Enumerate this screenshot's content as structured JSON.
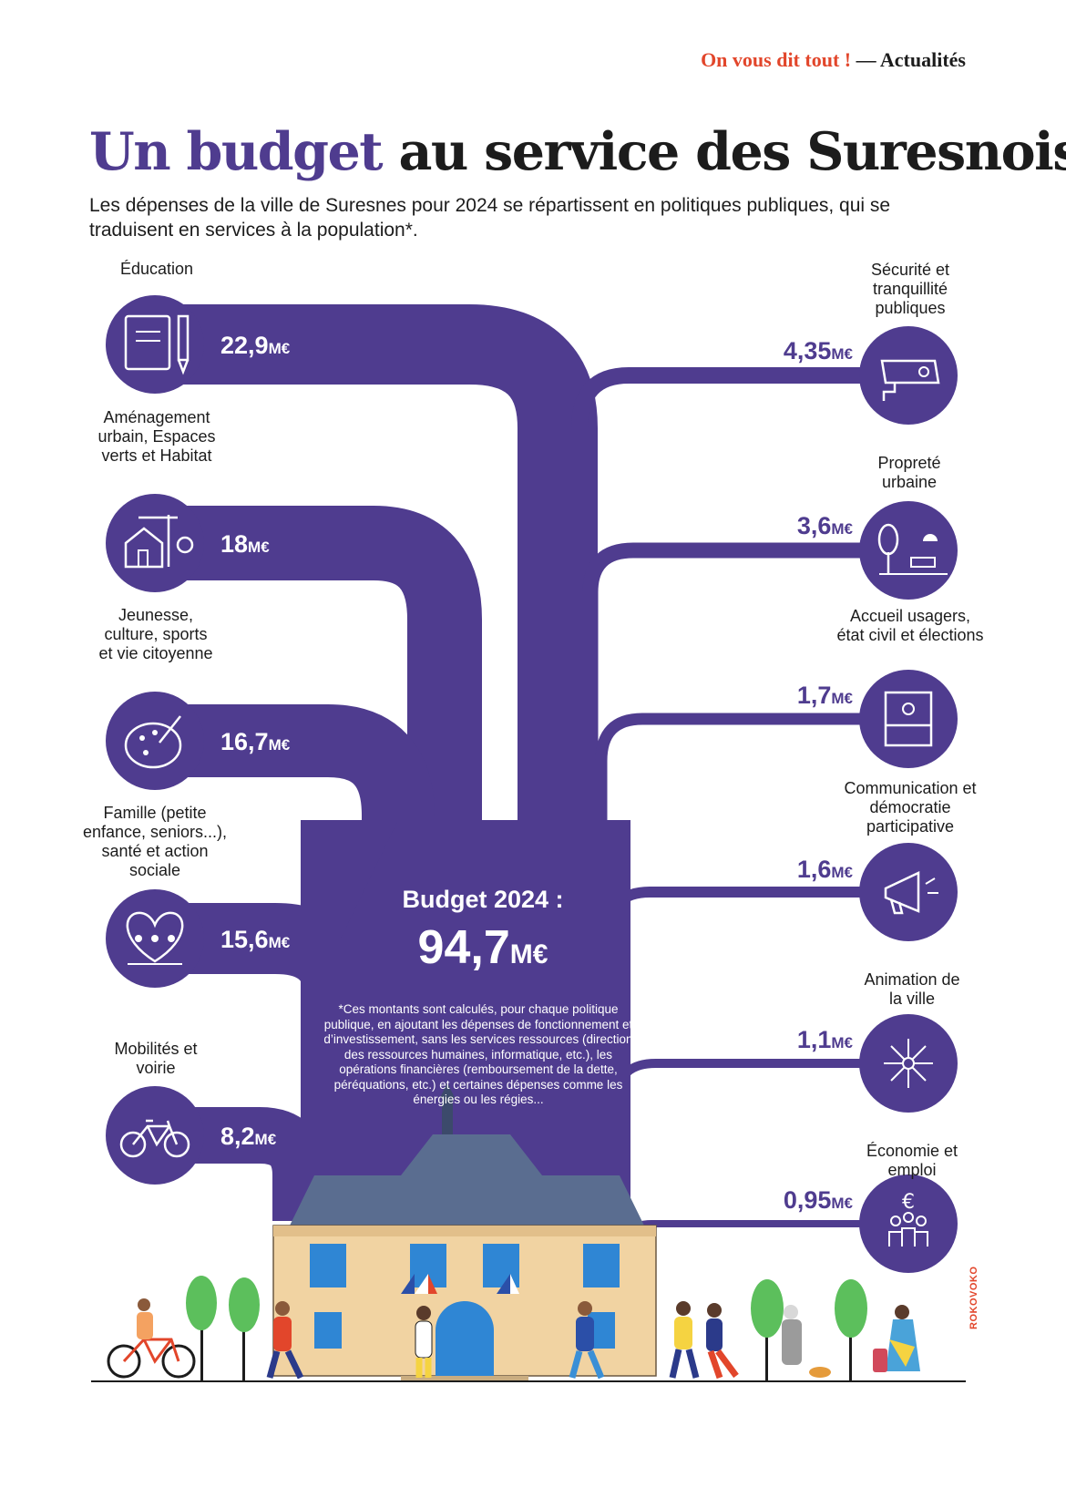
{
  "header": {
    "kicker_accent": "On vous dit tout !",
    "kicker_rest": " — Actualités"
  },
  "title": {
    "accent": "Un budget",
    "rest": " au service des Suresnois"
  },
  "intro": "Les dépenses de la ville de Suresnes pour 2024 se répartissent en politiques publiques, qui se traduisent en services à la population*.",
  "budget": {
    "title": "Budget 2024 :",
    "value": "94,7",
    "unit": "M€"
  },
  "footnote": "*Ces montants sont calculés, pour chaque politique publique, en ajoutant les dépenses de fonctionnement et d’investissement, sans les services ressources (direction des ressources humaines, informatique, etc.), les opérations financières (remboursement de la dette, péréquations, etc.) et certaines dépenses comme les énergies ou les régies...",
  "left_items": [
    {
      "label": "Éducation",
      "amount": "22,9",
      "unit": "M€",
      "icon": "book-pencil-icon"
    },
    {
      "label": "Aménagement urbain, Espaces verts et Habitat",
      "amount": "18",
      "unit": "M€",
      "icon": "house-crane-icon"
    },
    {
      "label": "Jeunesse, culture, sports et vie citoyenne",
      "amount": "16,7",
      "unit": "M€",
      "icon": "palette-icon"
    },
    {
      "label": "Famille (petite enfance, seniors...), santé et action sociale",
      "amount": "15,6",
      "unit": "M€",
      "icon": "family-heart-icon"
    },
    {
      "label": "Mobilités et voirie",
      "amount": "8,2",
      "unit": "M€",
      "icon": "bicycle-icon"
    }
  ],
  "right_items": [
    {
      "label": "Sécurité et tranquillité publiques",
      "amount": "4,35",
      "unit": "M€",
      "icon": "camera-icon"
    },
    {
      "label": "Propreté urbaine",
      "amount": "3,6",
      "unit": "M€",
      "icon": "tree-bench-icon"
    },
    {
      "label": "Accueil usagers, état civil et élections",
      "amount": "1,7",
      "unit": "M€",
      "icon": "reception-desk-icon"
    },
    {
      "label": "Communication et démocratie participative",
      "amount": "1,6",
      "unit": "M€",
      "icon": "megaphone-icon"
    },
    {
      "label": "Animation de la ville",
      "amount": "1,1",
      "unit": "M€",
      "icon": "fireworks-icon"
    },
    {
      "label": "Économie et emploi",
      "amount": "0,95",
      "unit": "M€",
      "icon": "euro-people-icon"
    }
  ],
  "credit": "ROKOVOKO",
  "colors": {
    "accent": "#4f3c8f",
    "kicker": "#e2462b",
    "text": "#1c1c1c"
  }
}
